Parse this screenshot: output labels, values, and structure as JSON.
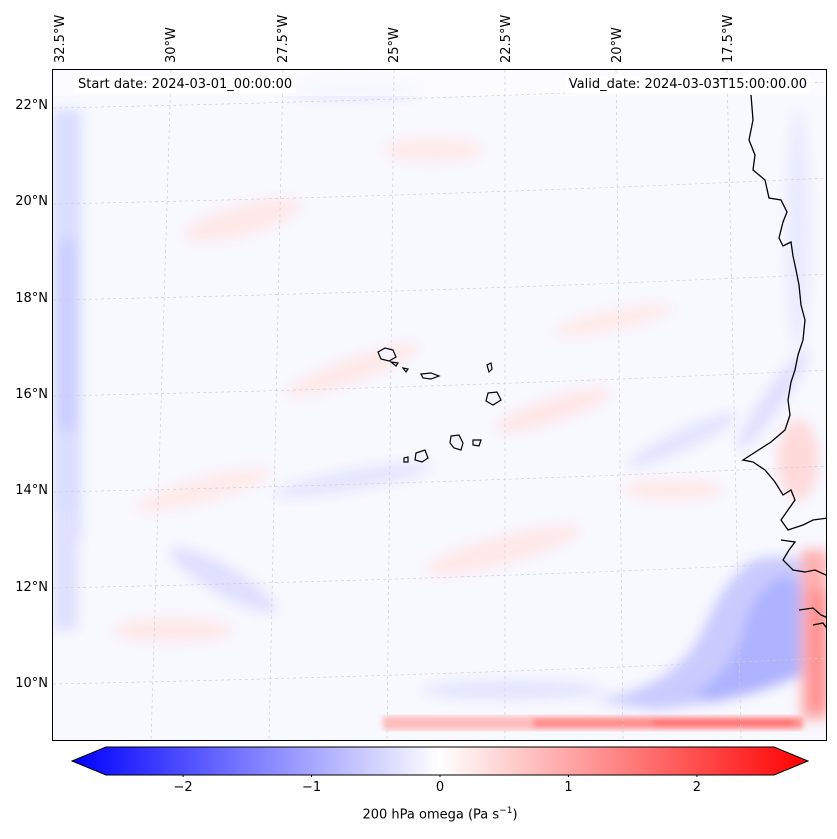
{
  "map": {
    "start_date": "Start date: 2024-03-01_00:00:00",
    "valid_date": "Valid_date: 2024-03-03T15:00:00.00",
    "lat_labels": [
      "22°N",
      "20°N",
      "18°N",
      "16°N",
      "14°N",
      "12°N",
      "10°N"
    ],
    "lon_labels": [
      "32.5°W",
      "30°W",
      "27.5°W",
      "25°W",
      "22.5°W",
      "20°W",
      "17.5°W"
    ],
    "field": "200 hPa omega"
  },
  "colorbar": {
    "ticks": [
      "−2",
      "−1",
      "0",
      "1",
      "2"
    ],
    "tick_values": [
      -2,
      -1,
      0,
      1,
      2
    ],
    "range": [
      -2.6,
      2.6
    ],
    "title": "200 hPa omega (Pa s",
    "title_sup": "−1",
    "title_end": ")",
    "colors": {
      "low": "#0000ff",
      "mid": "#ffffff",
      "high": "#ff0000"
    }
  }
}
